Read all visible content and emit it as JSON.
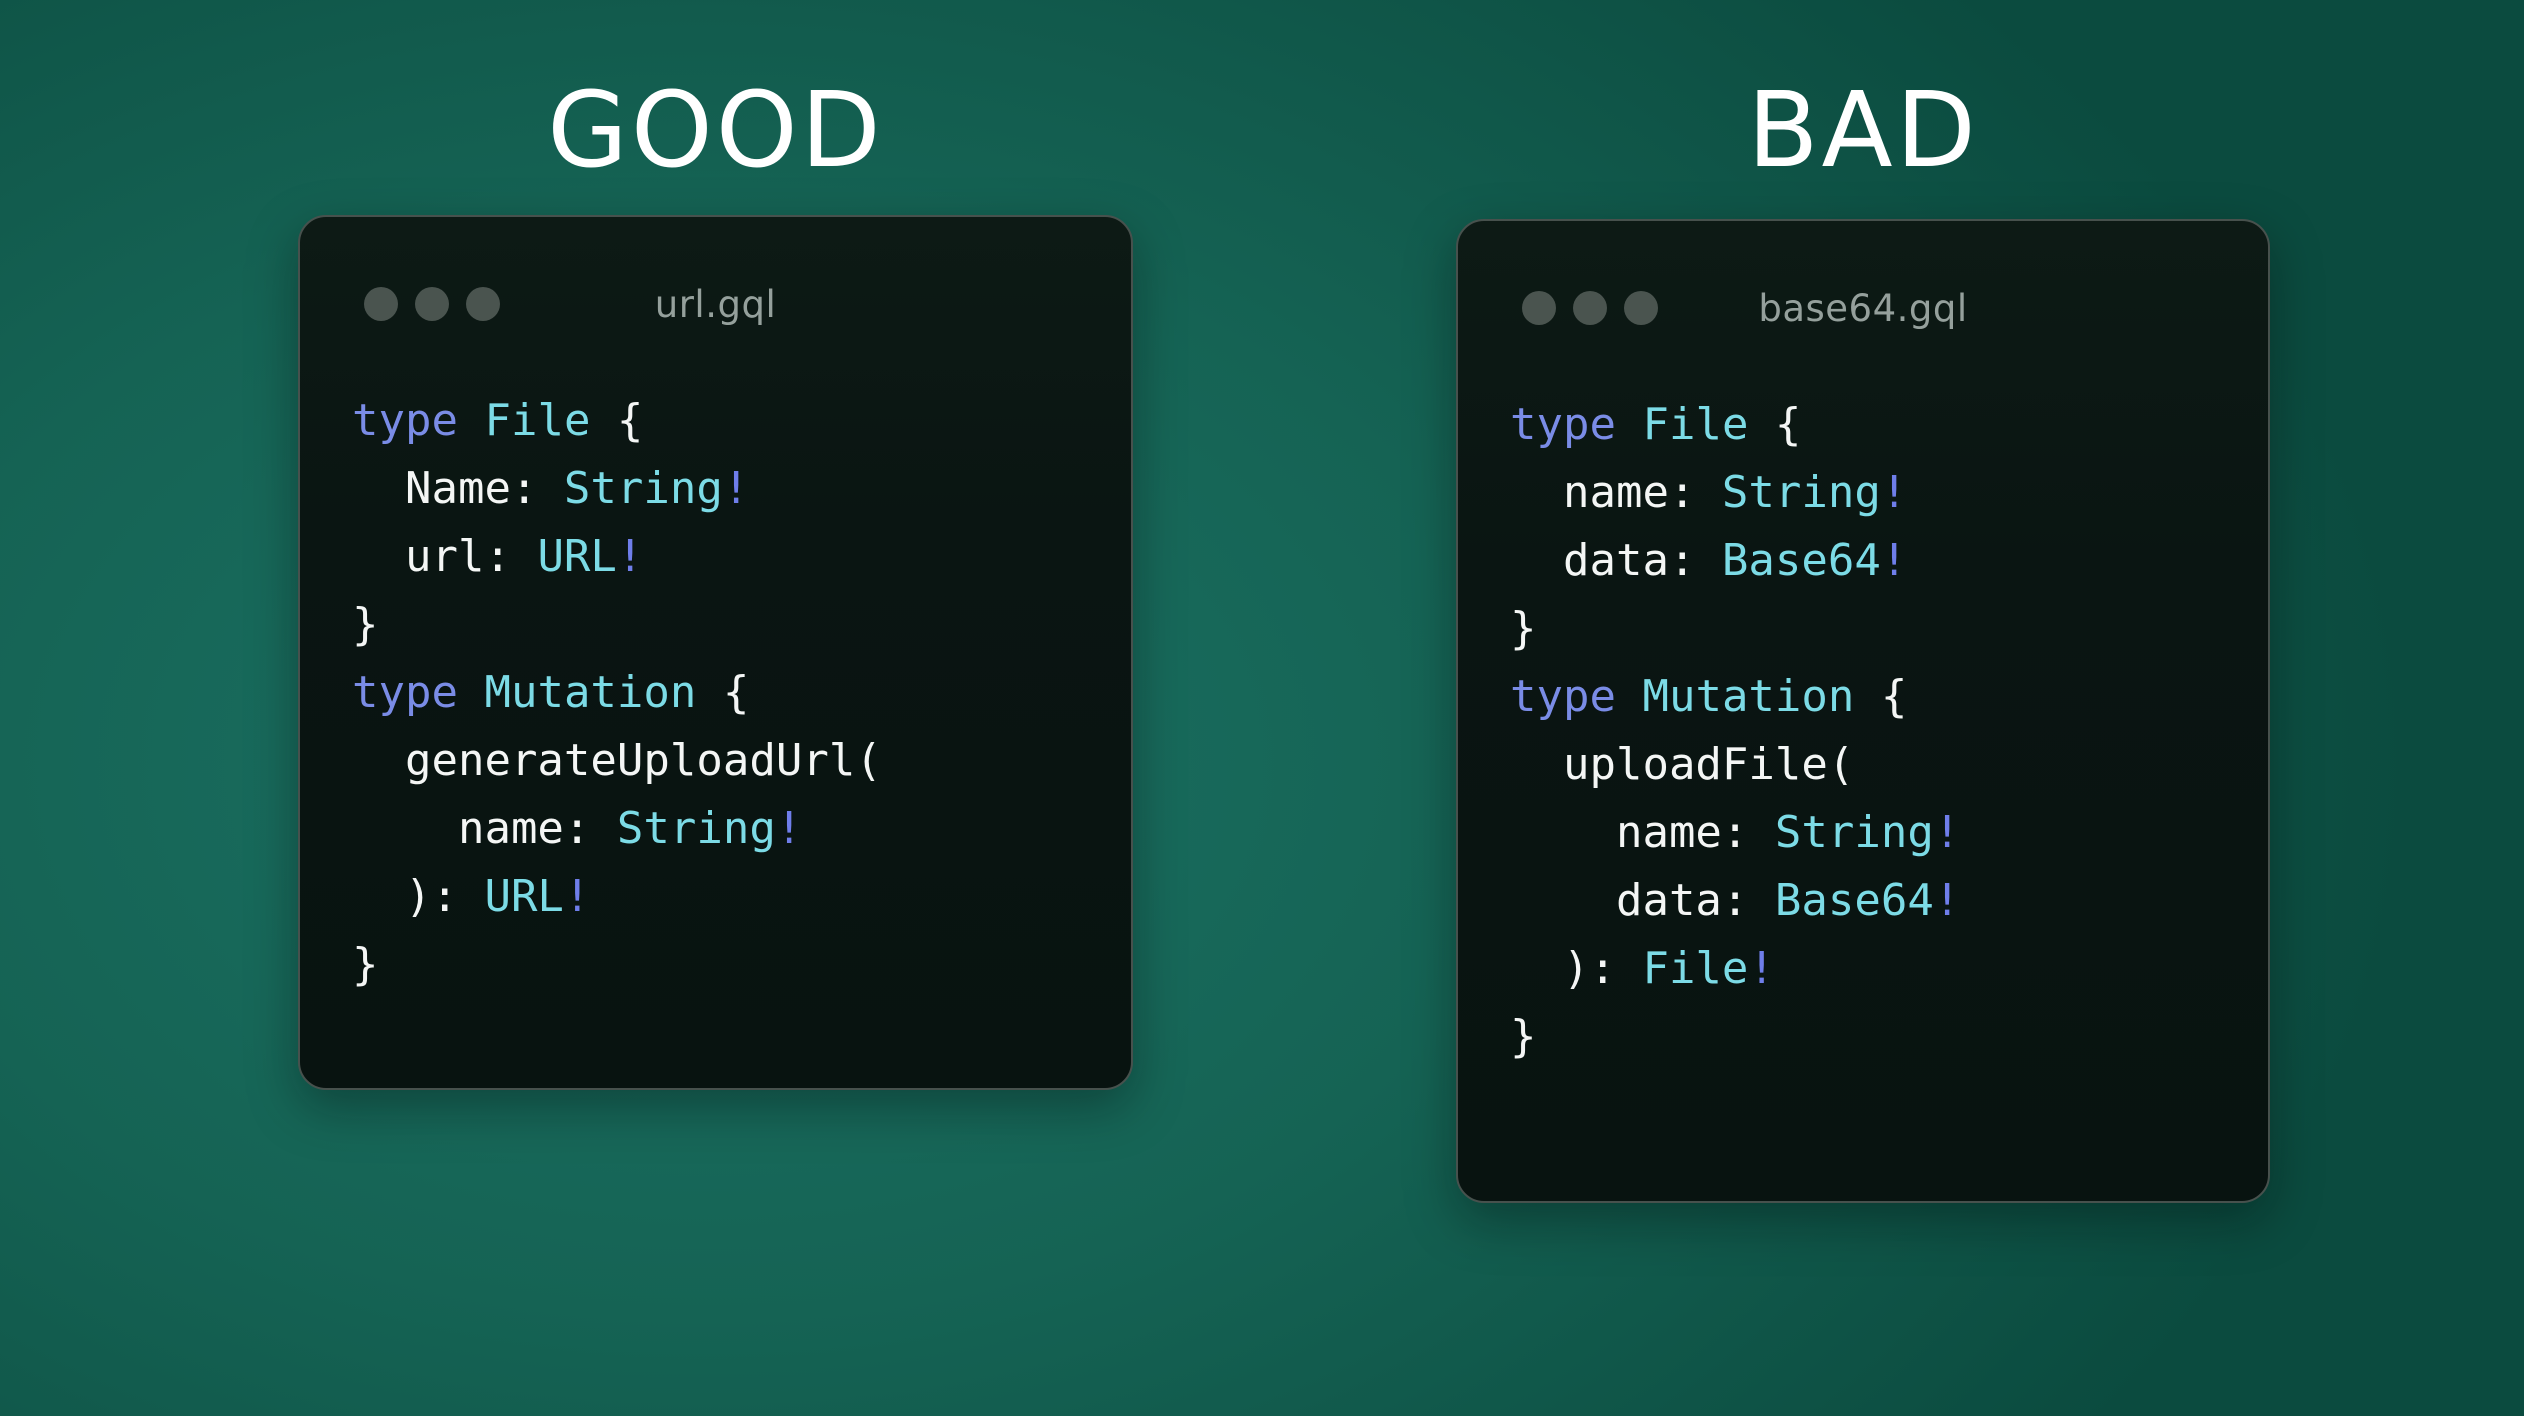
{
  "colors": {
    "background_outer": "#0b4b3f",
    "background_inner": "#1b7163",
    "window_background": "#0a1512",
    "window_border": "#47514d",
    "filename_text": "#95a09c",
    "dot": "#4a544f",
    "heading_text": "#ffffff",
    "syntax_plain": "#f4f6f5",
    "syntax_keyword": "#7a8ce6",
    "syntax_type": "#7cdbe6",
    "syntax_bang": "#6f7eea"
  },
  "panels": [
    {
      "verdict": "GOOD",
      "filename": "url.gql",
      "code_lines": [
        [
          {
            "c": "kw",
            "t": "type"
          },
          {
            "c": "pl",
            "t": " "
          },
          {
            "c": "ty",
            "t": "File"
          },
          {
            "c": "pl",
            "t": " {"
          }
        ],
        [
          {
            "c": "pl",
            "t": "  Name: "
          },
          {
            "c": "ty",
            "t": "String"
          },
          {
            "c": "bang",
            "t": "!"
          }
        ],
        [
          {
            "c": "pl",
            "t": "  url: "
          },
          {
            "c": "ty",
            "t": "URL"
          },
          {
            "c": "bang",
            "t": "!"
          }
        ],
        [
          {
            "c": "pl",
            "t": "}"
          }
        ],
        [
          {
            "c": "kw",
            "t": "type"
          },
          {
            "c": "pl",
            "t": " "
          },
          {
            "c": "ty",
            "t": "Mutation"
          },
          {
            "c": "pl",
            "t": " {"
          }
        ],
        [
          {
            "c": "pl",
            "t": "  generateUploadUrl("
          }
        ],
        [
          {
            "c": "pl",
            "t": "    name: "
          },
          {
            "c": "ty",
            "t": "String"
          },
          {
            "c": "bang",
            "t": "!"
          }
        ],
        [
          {
            "c": "pl",
            "t": "  ): "
          },
          {
            "c": "ty",
            "t": "URL"
          },
          {
            "c": "bang",
            "t": "!"
          }
        ],
        [
          {
            "c": "pl",
            "t": "}"
          }
        ]
      ]
    },
    {
      "verdict": "BAD",
      "filename": "base64.gql",
      "code_lines": [
        [
          {
            "c": "kw",
            "t": "type"
          },
          {
            "c": "pl",
            "t": " "
          },
          {
            "c": "ty",
            "t": "File"
          },
          {
            "c": "pl",
            "t": " {"
          }
        ],
        [
          {
            "c": "pl",
            "t": "  name: "
          },
          {
            "c": "ty",
            "t": "String"
          },
          {
            "c": "bang",
            "t": "!"
          }
        ],
        [
          {
            "c": "pl",
            "t": "  data: "
          },
          {
            "c": "ty",
            "t": "Base64"
          },
          {
            "c": "bang",
            "t": "!"
          }
        ],
        [
          {
            "c": "pl",
            "t": "}"
          }
        ],
        [
          {
            "c": "kw",
            "t": "type"
          },
          {
            "c": "pl",
            "t": " "
          },
          {
            "c": "ty",
            "t": "Mutation"
          },
          {
            "c": "pl",
            "t": " {"
          }
        ],
        [
          {
            "c": "pl",
            "t": "  uploadFile("
          }
        ],
        [
          {
            "c": "pl",
            "t": "    name: "
          },
          {
            "c": "ty",
            "t": "String"
          },
          {
            "c": "bang",
            "t": "!"
          }
        ],
        [
          {
            "c": "pl",
            "t": "    data: "
          },
          {
            "c": "ty",
            "t": "Base64"
          },
          {
            "c": "bang",
            "t": "!"
          }
        ],
        [
          {
            "c": "pl",
            "t": "  ): "
          },
          {
            "c": "ty",
            "t": "File"
          },
          {
            "c": "bang",
            "t": "!"
          }
        ],
        [
          {
            "c": "pl",
            "t": "}"
          }
        ]
      ]
    }
  ]
}
